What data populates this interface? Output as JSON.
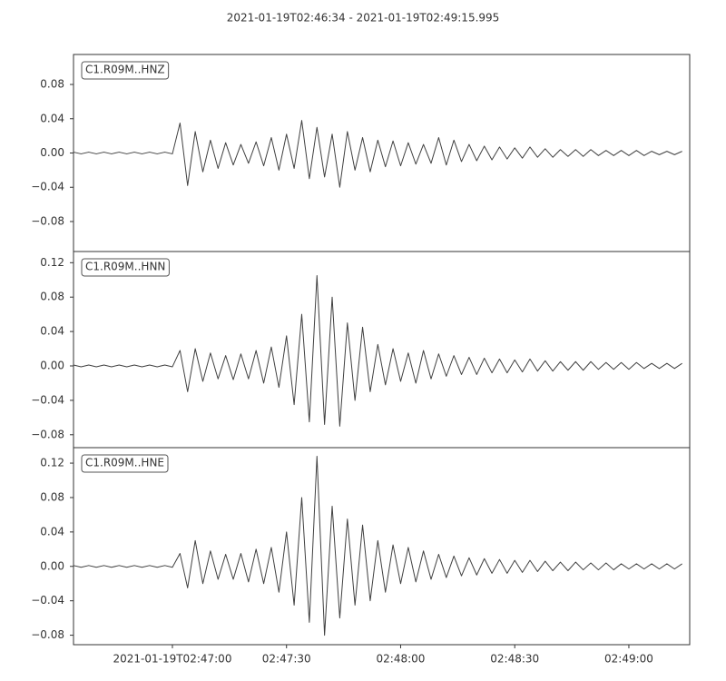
{
  "chart_data": [
    {
      "type": "line",
      "title": "2021-01-19T02:46:34  -  2021-01-19T02:49:15.995",
      "x": [
        "02:46:34",
        "02:46:36",
        "02:46:38",
        "02:46:40",
        "02:46:42",
        "02:46:44",
        "02:46:46",
        "02:46:48",
        "02:46:50",
        "02:46:52",
        "02:46:54",
        "02:46:56",
        "02:46:58",
        "02:47:00",
        "02:47:02",
        "02:47:04",
        "02:47:06",
        "02:47:08",
        "02:47:10",
        "02:47:12",
        "02:47:14",
        "02:47:16",
        "02:47:18",
        "02:47:20",
        "02:47:22",
        "02:47:24",
        "02:47:26",
        "02:47:28",
        "02:47:30",
        "02:47:32",
        "02:47:34",
        "02:47:36",
        "02:47:38",
        "02:47:40",
        "02:47:42",
        "02:47:44",
        "02:47:46",
        "02:47:48",
        "02:47:50",
        "02:47:52",
        "02:47:54",
        "02:47:56",
        "02:47:58",
        "02:48:00",
        "02:48:02",
        "02:48:04",
        "02:48:06",
        "02:48:08",
        "02:48:10",
        "02:48:12",
        "02:48:14",
        "02:48:16",
        "02:48:18",
        "02:48:20",
        "02:48:22",
        "02:48:24",
        "02:48:26",
        "02:48:28",
        "02:48:30",
        "02:48:32",
        "02:48:34",
        "02:48:36",
        "02:48:38",
        "02:48:40",
        "02:48:42",
        "02:48:44",
        "02:48:46",
        "02:48:48",
        "02:48:50",
        "02:48:52",
        "02:48:54",
        "02:48:56",
        "02:48:58",
        "02:49:00",
        "02:49:02",
        "02:49:04",
        "02:49:06",
        "02:49:08",
        "02:49:10",
        "02:49:12",
        "02:49:14"
      ],
      "series": [
        {
          "name": "C1.R09M..HNZ",
          "color": "#404040",
          "values": [
            0.001,
            -0.001,
            0.001,
            -0.001,
            0.001,
            -0.001,
            0.001,
            -0.001,
            0.001,
            -0.001,
            0.001,
            -0.001,
            0.001,
            -0.001,
            0.035,
            -0.038,
            0.025,
            -0.022,
            0.015,
            -0.018,
            0.012,
            -0.014,
            0.01,
            -0.012,
            0.013,
            -0.015,
            0.018,
            -0.02,
            0.022,
            -0.018,
            0.038,
            -0.03,
            0.03,
            -0.028,
            0.022,
            -0.04,
            0.025,
            -0.02,
            0.018,
            -0.022,
            0.015,
            -0.016,
            0.014,
            -0.015,
            0.012,
            -0.013,
            0.01,
            -0.012,
            0.018,
            -0.014,
            0.015,
            -0.01,
            0.01,
            -0.009,
            0.008,
            -0.008,
            0.007,
            -0.007,
            0.006,
            -0.006,
            0.007,
            -0.005,
            0.005,
            -0.005,
            0.004,
            -0.004,
            0.004,
            -0.004,
            0.004,
            -0.003,
            0.003,
            -0.003,
            0.003,
            -0.003,
            0.003,
            -0.003,
            0.002,
            -0.002,
            0.002,
            -0.002,
            0.002
          ]
        }
      ],
      "xlim": [
        "02:46:34",
        "02:49:15.995"
      ],
      "ylim": [
        -0.115,
        0.115
      ],
      "yticks": [
        {
          "value": -0.08,
          "label": "−0.08"
        },
        {
          "value": -0.04,
          "label": "−0.04"
        },
        {
          "value": 0,
          "label": "0.00"
        },
        {
          "value": 0.04,
          "label": "0.04"
        },
        {
          "value": 0.08,
          "label": "0.08"
        }
      ]
    },
    {
      "type": "line",
      "x": [
        "02:46:34",
        "02:46:36",
        "02:46:38",
        "02:46:40",
        "02:46:42",
        "02:46:44",
        "02:46:46",
        "02:46:48",
        "02:46:50",
        "02:46:52",
        "02:46:54",
        "02:46:56",
        "02:46:58",
        "02:47:00",
        "02:47:02",
        "02:47:04",
        "02:47:06",
        "02:47:08",
        "02:47:10",
        "02:47:12",
        "02:47:14",
        "02:47:16",
        "02:47:18",
        "02:47:20",
        "02:47:22",
        "02:47:24",
        "02:47:26",
        "02:47:28",
        "02:47:30",
        "02:47:32",
        "02:47:34",
        "02:47:36",
        "02:47:38",
        "02:47:40",
        "02:47:42",
        "02:47:44",
        "02:47:46",
        "02:47:48",
        "02:47:50",
        "02:47:52",
        "02:47:54",
        "02:47:56",
        "02:47:58",
        "02:48:00",
        "02:48:02",
        "02:48:04",
        "02:48:06",
        "02:48:08",
        "02:48:10",
        "02:48:12",
        "02:48:14",
        "02:48:16",
        "02:48:18",
        "02:48:20",
        "02:48:22",
        "02:48:24",
        "02:48:26",
        "02:48:28",
        "02:48:30",
        "02:48:32",
        "02:48:34",
        "02:48:36",
        "02:48:38",
        "02:48:40",
        "02:48:42",
        "02:48:44",
        "02:48:46",
        "02:48:48",
        "02:48:50",
        "02:48:52",
        "02:48:54",
        "02:48:56",
        "02:48:58",
        "02:49:00",
        "02:49:02",
        "02:49:04",
        "02:49:06",
        "02:49:08",
        "02:49:10",
        "02:49:12",
        "02:49:14"
      ],
      "series": [
        {
          "name": "C1.R09M..HNN",
          "color": "#404040",
          "values": [
            0.001,
            -0.001,
            0.001,
            -0.001,
            0.001,
            -0.001,
            0.001,
            -0.001,
            0.001,
            -0.001,
            0.001,
            -0.001,
            0.001,
            -0.001,
            0.018,
            -0.03,
            0.02,
            -0.018,
            0.015,
            -0.015,
            0.012,
            -0.016,
            0.014,
            -0.015,
            0.018,
            -0.02,
            0.022,
            -0.025,
            0.035,
            -0.045,
            0.06,
            -0.065,
            0.105,
            -0.068,
            0.08,
            -0.07,
            0.05,
            -0.04,
            0.045,
            -0.03,
            0.025,
            -0.022,
            0.02,
            -0.018,
            0.015,
            -0.02,
            0.018,
            -0.015,
            0.014,
            -0.012,
            0.012,
            -0.01,
            0.01,
            -0.01,
            0.009,
            -0.008,
            0.008,
            -0.008,
            0.007,
            -0.007,
            0.008,
            -0.006,
            0.006,
            -0.006,
            0.005,
            -0.005,
            0.005,
            -0.005,
            0.005,
            -0.004,
            0.004,
            -0.004,
            0.004,
            -0.004,
            0.004,
            -0.003,
            0.003,
            -0.003,
            0.003,
            -0.003,
            0.003
          ]
        }
      ],
      "xlim": [
        "02:46:34",
        "02:49:15.995"
      ],
      "ylim": [
        -0.095,
        0.133
      ],
      "yticks": [
        {
          "value": -0.08,
          "label": "−0.08"
        },
        {
          "value": -0.04,
          "label": "−0.04"
        },
        {
          "value": 0,
          "label": "0.00"
        },
        {
          "value": 0.04,
          "label": "0.04"
        },
        {
          "value": 0.08,
          "label": "0.08"
        },
        {
          "value": 0.12,
          "label": "0.12"
        }
      ]
    },
    {
      "type": "line",
      "x": [
        "02:46:34",
        "02:46:36",
        "02:46:38",
        "02:46:40",
        "02:46:42",
        "02:46:44",
        "02:46:46",
        "02:46:48",
        "02:46:50",
        "02:46:52",
        "02:46:54",
        "02:46:56",
        "02:46:58",
        "02:47:00",
        "02:47:02",
        "02:47:04",
        "02:47:06",
        "02:47:08",
        "02:47:10",
        "02:47:12",
        "02:47:14",
        "02:47:16",
        "02:47:18",
        "02:47:20",
        "02:47:22",
        "02:47:24",
        "02:47:26",
        "02:47:28",
        "02:47:30",
        "02:47:32",
        "02:47:34",
        "02:47:36",
        "02:47:38",
        "02:47:40",
        "02:47:42",
        "02:47:44",
        "02:47:46",
        "02:47:48",
        "02:47:50",
        "02:47:52",
        "02:47:54",
        "02:47:56",
        "02:47:58",
        "02:48:00",
        "02:48:02",
        "02:48:04",
        "02:48:06",
        "02:48:08",
        "02:48:10",
        "02:48:12",
        "02:48:14",
        "02:48:16",
        "02:48:18",
        "02:48:20",
        "02:48:22",
        "02:48:24",
        "02:48:26",
        "02:48:28",
        "02:48:30",
        "02:48:32",
        "02:48:34",
        "02:48:36",
        "02:48:38",
        "02:48:40",
        "02:48:42",
        "02:48:44",
        "02:48:46",
        "02:48:48",
        "02:48:50",
        "02:48:52",
        "02:48:54",
        "02:48:56",
        "02:48:58",
        "02:49:00",
        "02:49:02",
        "02:49:04",
        "02:49:06",
        "02:49:08",
        "02:49:10",
        "02:49:12",
        "02:49:14"
      ],
      "series": [
        {
          "name": "C1.R09M..HNE",
          "color": "#404040",
          "values": [
            0.001,
            -0.001,
            0.001,
            -0.001,
            0.001,
            -0.001,
            0.001,
            -0.001,
            0.001,
            -0.001,
            0.001,
            -0.001,
            0.001,
            -0.001,
            0.015,
            -0.025,
            0.03,
            -0.02,
            0.018,
            -0.015,
            0.014,
            -0.015,
            0.015,
            -0.018,
            0.02,
            -0.02,
            0.022,
            -0.03,
            0.04,
            -0.045,
            0.08,
            -0.065,
            0.128,
            -0.08,
            0.07,
            -0.06,
            0.055,
            -0.045,
            0.048,
            -0.04,
            0.03,
            -0.03,
            0.025,
            -0.02,
            0.022,
            -0.018,
            0.018,
            -0.015,
            0.014,
            -0.013,
            0.012,
            -0.011,
            0.01,
            -0.01,
            0.009,
            -0.008,
            0.008,
            -0.008,
            0.007,
            -0.007,
            0.007,
            -0.006,
            0.006,
            -0.005,
            0.005,
            -0.005,
            0.005,
            -0.004,
            0.004,
            -0.004,
            0.004,
            -0.004,
            0.003,
            -0.003,
            0.003,
            -0.003,
            0.003,
            -0.003,
            0.003,
            -0.003,
            0.003
          ]
        }
      ],
      "xlim": [
        "02:46:34",
        "02:49:15.995"
      ],
      "ylim": [
        -0.091,
        0.138
      ],
      "yticks": [
        {
          "value": -0.08,
          "label": "−0.08"
        },
        {
          "value": -0.04,
          "label": "−0.04"
        },
        {
          "value": 0,
          "label": "0.00"
        },
        {
          "value": 0.04,
          "label": "0.04"
        },
        {
          "value": 0.08,
          "label": "0.08"
        },
        {
          "value": 0.12,
          "label": "0.12"
        }
      ],
      "xticks": [
        {
          "value": "02:47:00",
          "label": "2021-01-19T02:47:00"
        },
        "02:47:30",
        "02:48:00",
        "02:48:30",
        "02:49:00"
      ]
    }
  ]
}
